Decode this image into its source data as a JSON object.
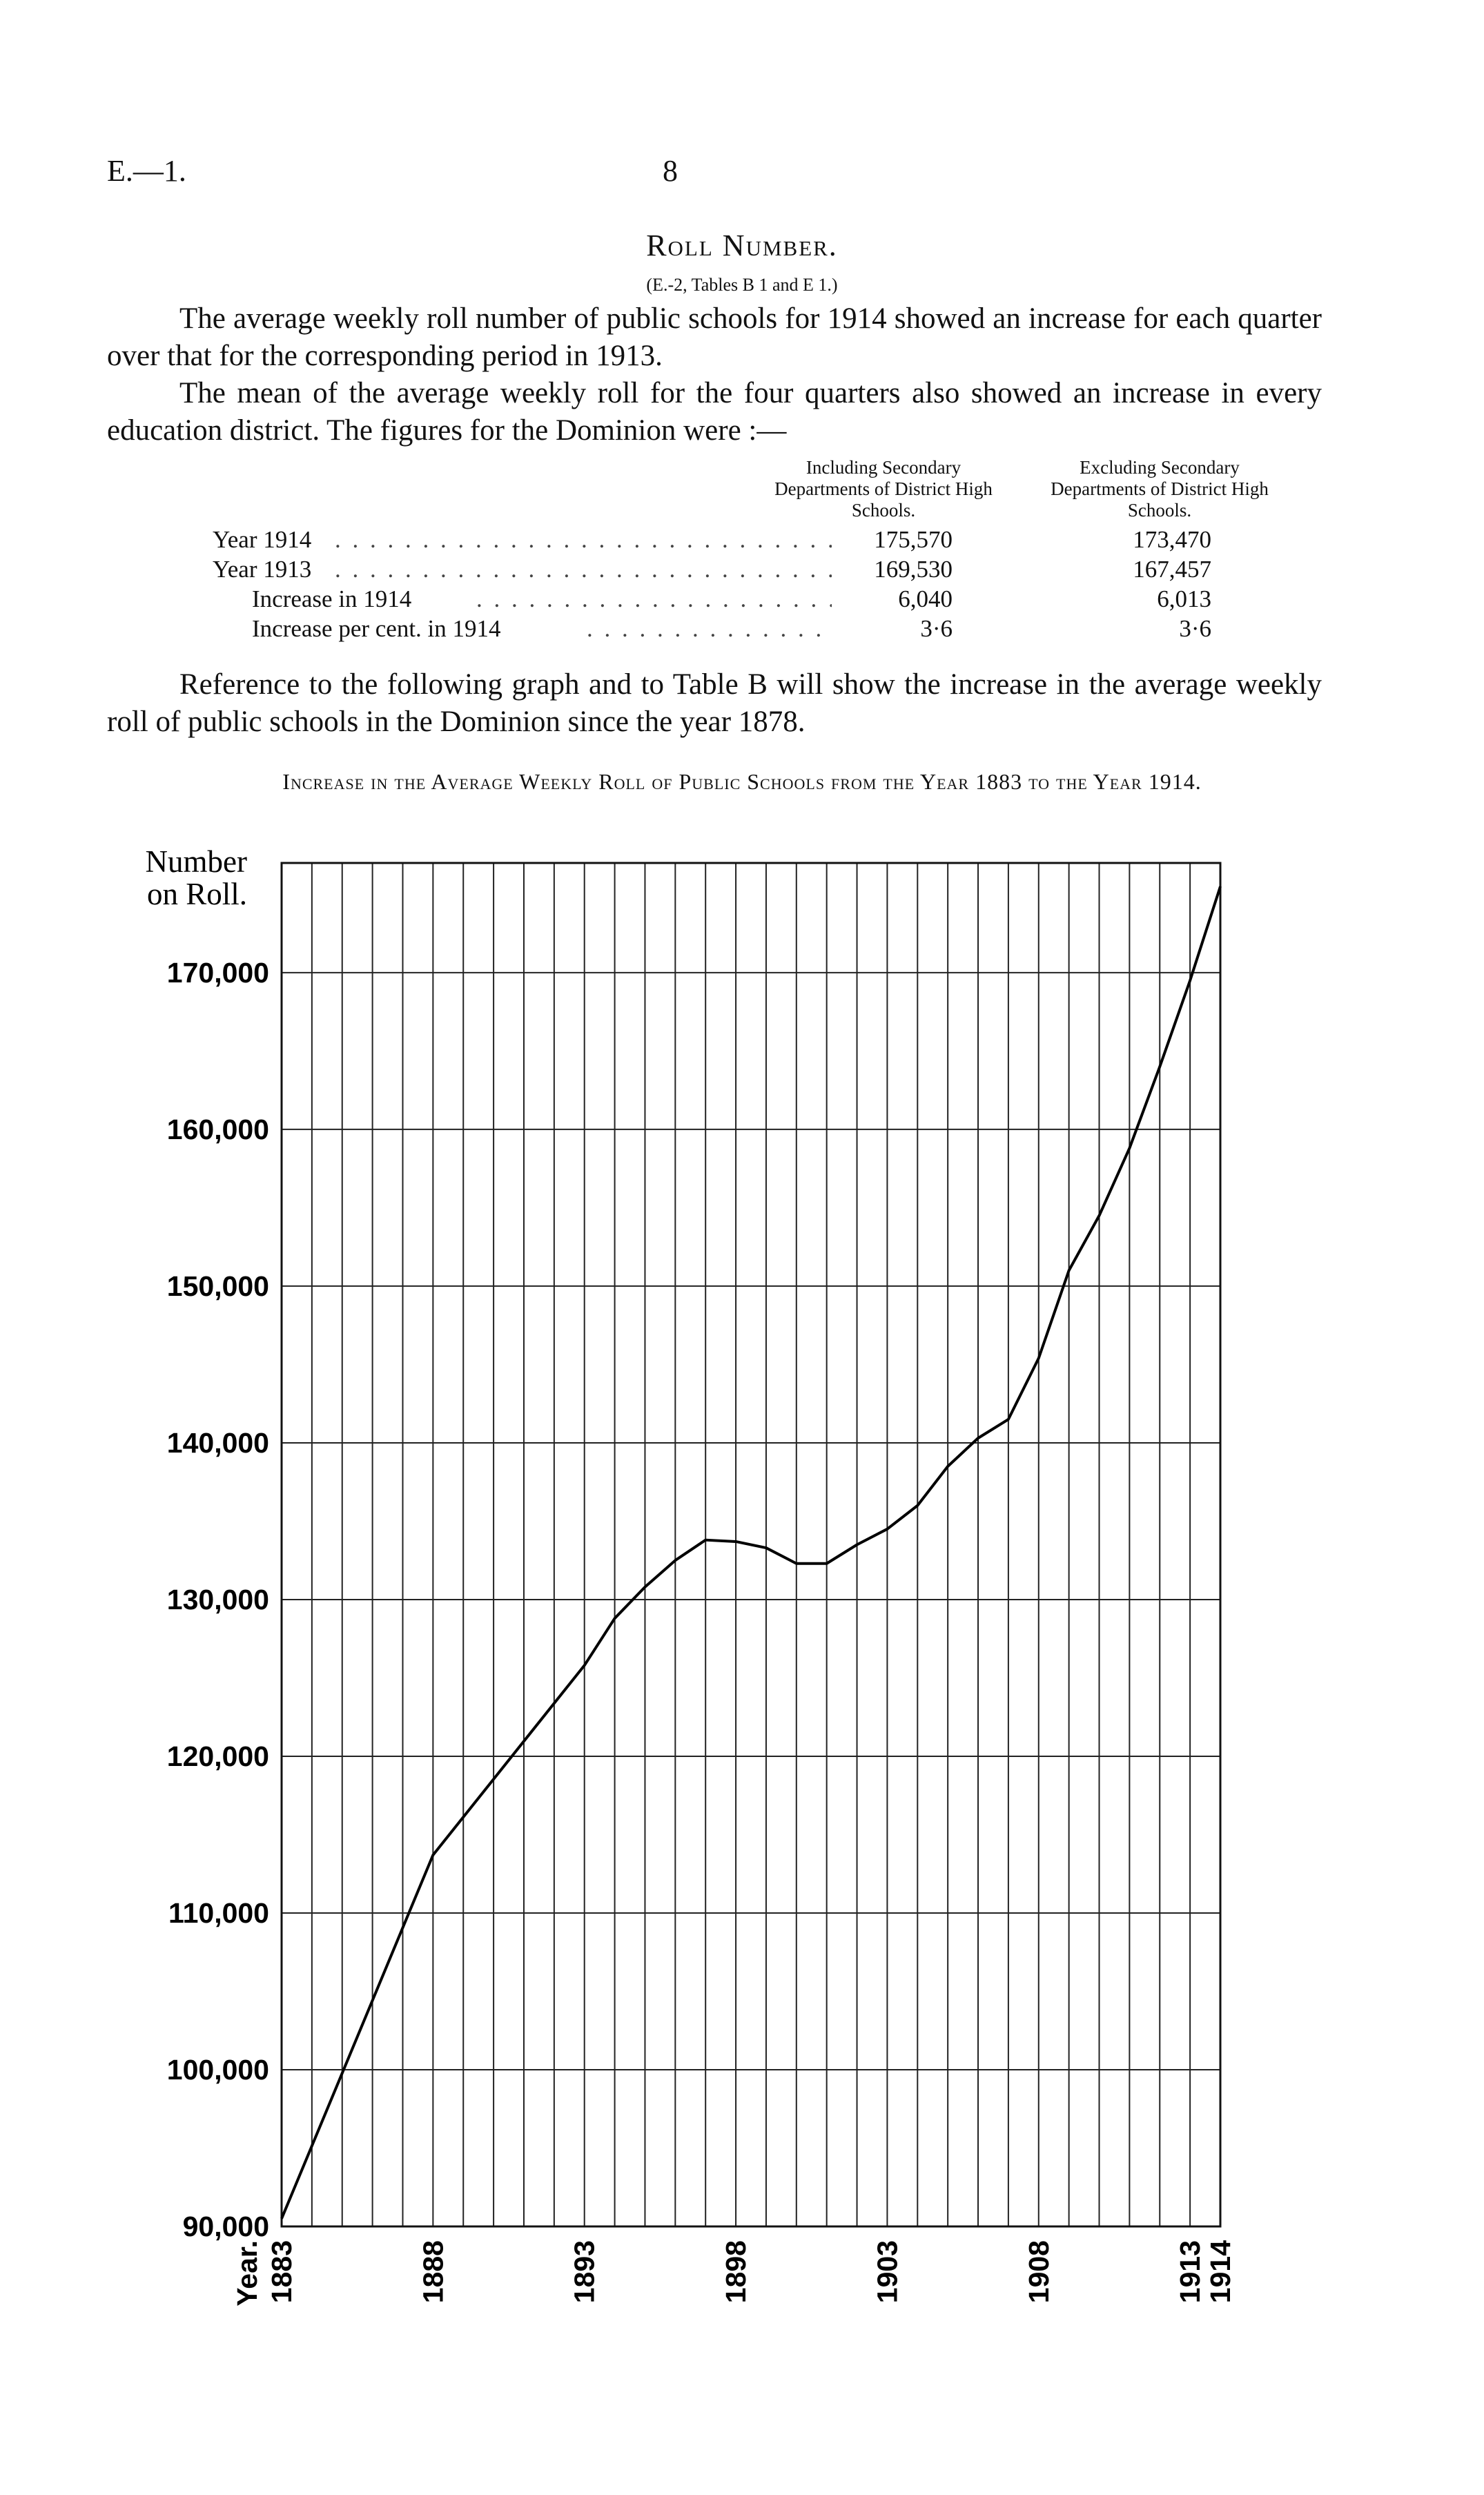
{
  "header": {
    "ref": "E.—1.",
    "page": "8"
  },
  "section": {
    "heading": "Roll Number.",
    "subref": "(E.-2, Tables B 1 and E 1.)",
    "paragraphs": [
      "The average weekly roll number of public schools for 1914 showed an increase for each quarter over that for the corresponding period in 1913.",
      "The mean of the average weekly roll for the four quarters also showed an increase in every education district. The figures for the Dominion were :—"
    ]
  },
  "table": {
    "col1_header": "Including Secondary Departments of District High Schools.",
    "col2_header": "Excluding Secondary Departments of District High Schools.",
    "rows": [
      {
        "label": "Year 1914",
        "col1": "175,570",
        "col2": "173,470"
      },
      {
        "label": "Year 1913",
        "col1": "169,530",
        "col2": "167,457"
      },
      {
        "label": "Increase in 1914",
        "col1": "6,040",
        "col2": "6,013"
      },
      {
        "label": "Increase per cent. in 1914",
        "col1": "3·6",
        "col2": "3·6"
      }
    ]
  },
  "reference_text": "Reference to the following graph and to Table B will show the increase in the average weekly roll of public schools in the Dominion since the year 1878.",
  "chart_title": "Increase in the Average Weekly Roll of Public Schools from the Year 1883 to the Year 1914.",
  "chart_data": {
    "type": "line",
    "title": "Increase in the Average Weekly Roll of Public Schools from the Year 1883 to the Year 1914.",
    "ylabel": "Number on Roll.",
    "xlabel": "Year.",
    "ylim": [
      90000,
      177000
    ],
    "y_ticks": [
      90000,
      100000,
      110000,
      120000,
      130000,
      140000,
      150000,
      160000,
      170000
    ],
    "y_tick_labels": [
      "90,000",
      "100,000",
      "110,000",
      "120,000",
      "130,000",
      "140,000",
      "150,000",
      "160,000",
      "170,000"
    ],
    "x_tick_labels": [
      "1883",
      "1888",
      "1893",
      "1898",
      "1903",
      "1908",
      "1913",
      "1914"
    ],
    "x_tick_years": [
      1883,
      1888,
      1893,
      1898,
      1903,
      1908,
      1913,
      1914
    ],
    "grid": true,
    "series": [
      {
        "x": [
          1883,
          1888,
          1893,
          1894,
          1895,
          1896,
          1897,
          1898,
          1899,
          1900,
          1901,
          1902,
          1903,
          1904,
          1905,
          1906,
          1907,
          1908,
          1909,
          1910,
          1911,
          1912,
          1913,
          1914
        ],
        "values": [
          90500,
          113700,
          125800,
          128800,
          130800,
          132500,
          133800,
          133700,
          133300,
          132300,
          132300,
          133500,
          134500,
          136000,
          138500,
          140300,
          141500,
          145400,
          151000,
          154500,
          158800,
          164000,
          169500,
          175500
        ]
      }
    ]
  }
}
